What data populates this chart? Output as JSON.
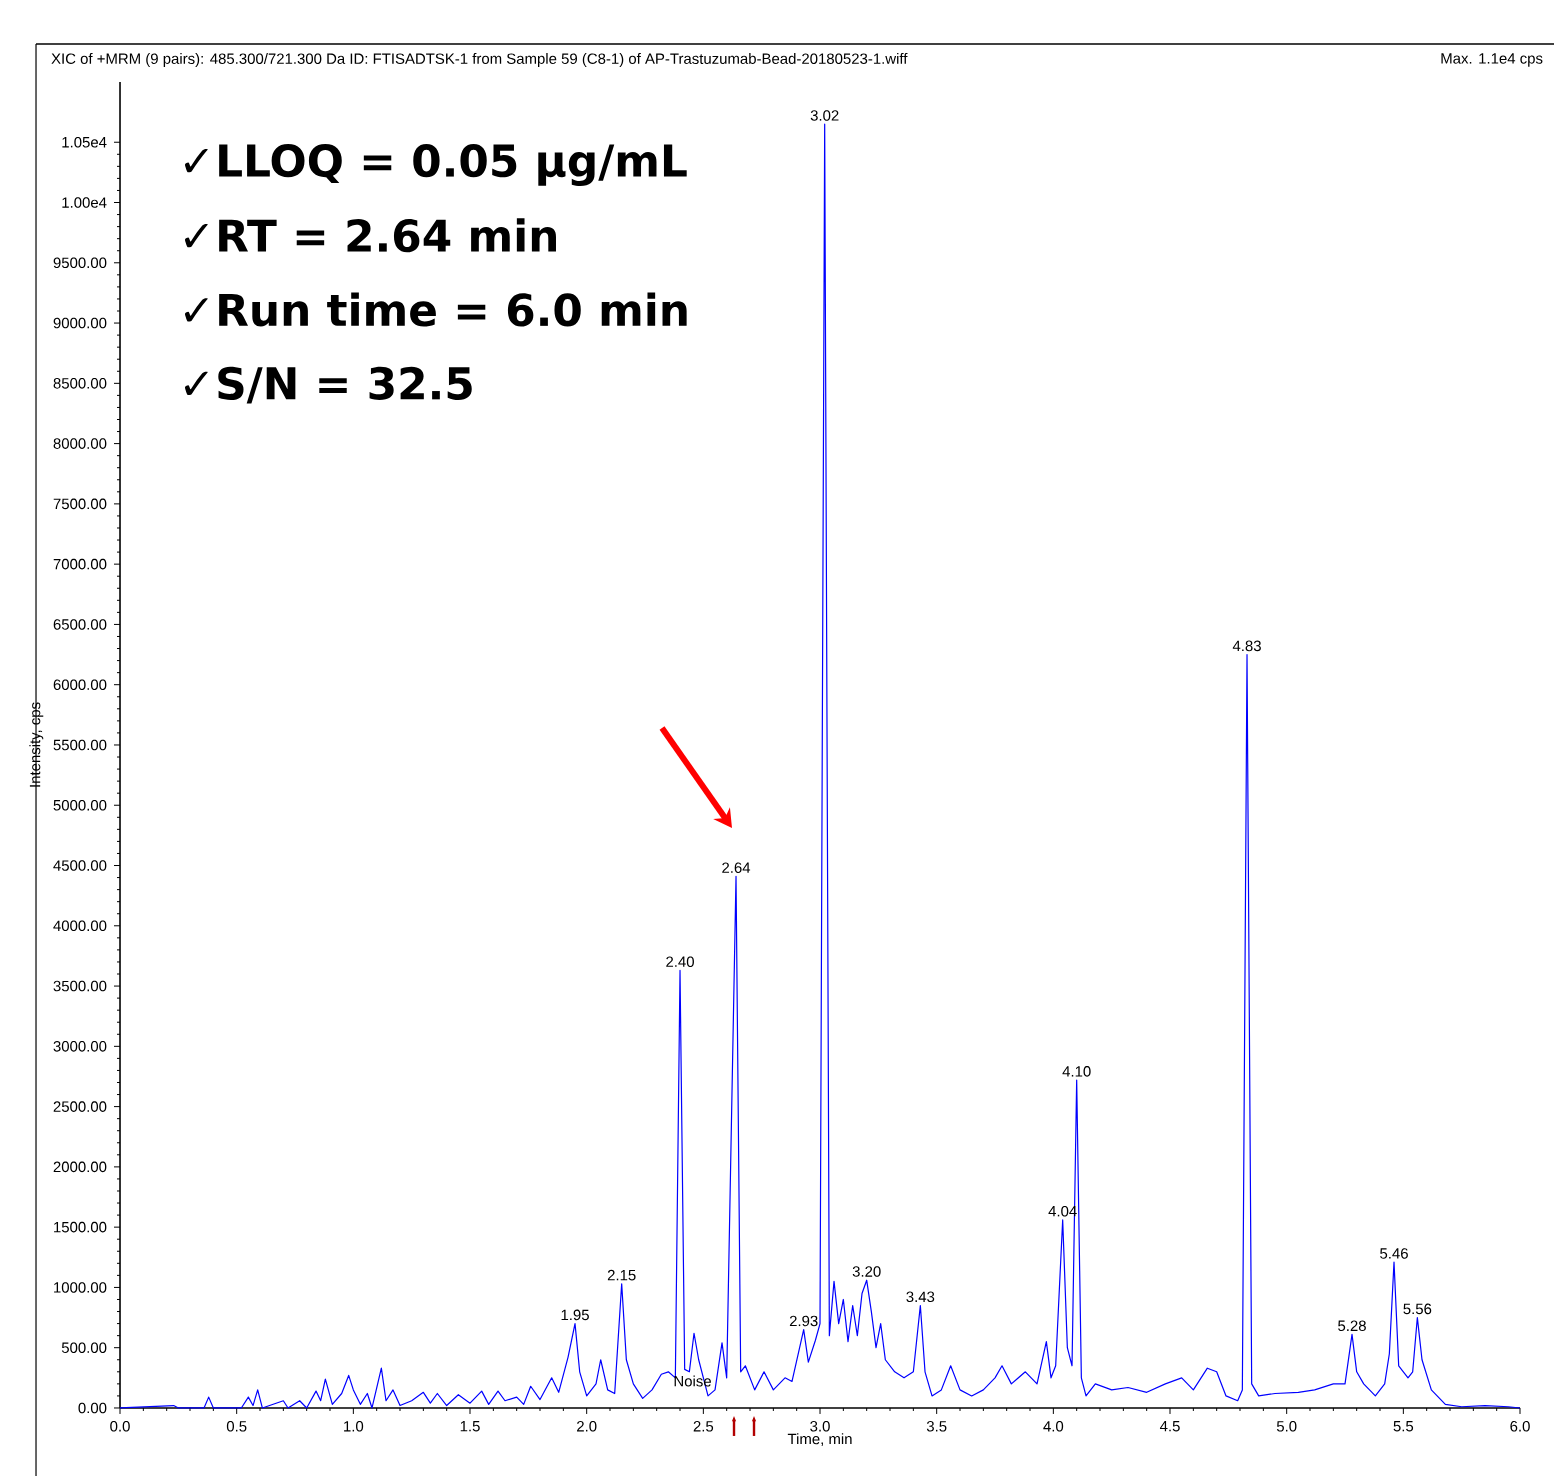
{
  "chart_data": {
    "type": "line",
    "title": "XIC of +MRM (9 pairs): 485.300/721.300 Da ID: FTISADTSK-1 from Sample 59 (C8-1) of AP-Trastuzumab-Bead-20180523-1.wiff",
    "subtitle": "Max. 1.1e4 cps",
    "xlabel": "Time, min",
    "ylabel": "Intensity, cps",
    "xlim": [
      0,
      6
    ],
    "ylim": [
      0,
      11000
    ],
    "xticks": [
      {
        "value": 0,
        "label": "0.0"
      },
      {
        "value": 0.5,
        "label": "0.5"
      },
      {
        "value": 1,
        "label": "1.0"
      },
      {
        "value": 1.5,
        "label": "1.5"
      },
      {
        "value": 2,
        "label": "2.0"
      },
      {
        "value": 2.5,
        "label": "2.5"
      },
      {
        "value": 3,
        "label": "3.0"
      },
      {
        "value": 3.5,
        "label": "3.5"
      },
      {
        "value": 4,
        "label": "4.0"
      },
      {
        "value": 4.5,
        "label": "4.5"
      },
      {
        "value": 5,
        "label": "5.0"
      },
      {
        "value": 5.5,
        "label": "5.5"
      },
      {
        "value": 6,
        "label": "6.0"
      }
    ],
    "yticks": [
      {
        "value": 0,
        "label": "0.00"
      },
      {
        "value": 500,
        "label": "500.00"
      },
      {
        "value": 1000,
        "label": "1000.00"
      },
      {
        "value": 1500,
        "label": "1500.00"
      },
      {
        "value": 2000,
        "label": "2000.00"
      },
      {
        "value": 2500,
        "label": "2500.00"
      },
      {
        "value": 3000,
        "label": "3000.00"
      },
      {
        "value": 3500,
        "label": "3500.00"
      },
      {
        "value": 4000,
        "label": "4000.00"
      },
      {
        "value": 4500,
        "label": "4500.00"
      },
      {
        "value": 5000,
        "label": "5000.00"
      },
      {
        "value": 5500,
        "label": "5500.00"
      },
      {
        "value": 6000,
        "label": "6000.00"
      },
      {
        "value": 6500,
        "label": "6500.00"
      },
      {
        "value": 7000,
        "label": "7000.00"
      },
      {
        "value": 7500,
        "label": "7500.00"
      },
      {
        "value": 8000,
        "label": "8000.00"
      },
      {
        "value": 8500,
        "label": "8500.00"
      },
      {
        "value": 9000,
        "label": "9000.00"
      },
      {
        "value": 9500,
        "label": "9500.00"
      },
      {
        "value": 10000,
        "label": "1.00e4"
      },
      {
        "value": 10500,
        "label": "1.05e4"
      }
    ],
    "grid": false,
    "series": [
      {
        "color": "#0000ff",
        "x": [
          0,
          0.23,
          0.25,
          0.36,
          0.38,
          0.4,
          0.52,
          0.55,
          0.57,
          0.59,
          0.61,
          0.7,
          0.72,
          0.77,
          0.8,
          0.84,
          0.86,
          0.88,
          0.91,
          0.95,
          0.98,
          1.0,
          1.03,
          1.06,
          1.08,
          1.12,
          1.14,
          1.17,
          1.2,
          1.25,
          1.3,
          1.33,
          1.36,
          1.4,
          1.45,
          1.5,
          1.55,
          1.58,
          1.62,
          1.65,
          1.7,
          1.73,
          1.76,
          1.8,
          1.85,
          1.88,
          1.92,
          1.95,
          1.97,
          2.0,
          2.04,
          2.06,
          2.09,
          2.12,
          2.15,
          2.17,
          2.2,
          2.24,
          2.28,
          2.32,
          2.35,
          2.38,
          2.4,
          2.42,
          2.44,
          2.46,
          2.48,
          2.52,
          2.55,
          2.58,
          2.6,
          2.64,
          2.66,
          2.68,
          2.72,
          2.76,
          2.8,
          2.85,
          2.88,
          2.93,
          2.95,
          2.98,
          3.0,
          3.02,
          3.04,
          3.06,
          3.08,
          3.1,
          3.12,
          3.14,
          3.16,
          3.18,
          3.2,
          3.22,
          3.24,
          3.26,
          3.28,
          3.32,
          3.36,
          3.4,
          3.43,
          3.45,
          3.48,
          3.52,
          3.56,
          3.6,
          3.65,
          3.7,
          3.75,
          3.78,
          3.82,
          3.88,
          3.93,
          3.97,
          3.99,
          4.01,
          4.04,
          4.06,
          4.08,
          4.1,
          4.12,
          4.14,
          4.18,
          4.25,
          4.32,
          4.4,
          4.48,
          4.55,
          4.6,
          4.66,
          4.7,
          4.74,
          4.79,
          4.81,
          4.83,
          4.85,
          4.88,
          4.95,
          5.05,
          5.12,
          5.2,
          5.25,
          5.28,
          5.3,
          5.33,
          5.38,
          5.42,
          5.44,
          5.46,
          5.48,
          5.52,
          5.54,
          5.56,
          5.58,
          5.62,
          5.68,
          5.75,
          5.85,
          5.95,
          6.0
        ],
        "values": [
          0,
          20,
          0,
          0,
          90,
          0,
          0,
          90,
          20,
          150,
          0,
          60,
          0,
          60,
          0,
          140,
          60,
          240,
          30,
          120,
          270,
          150,
          30,
          120,
          0,
          330,
          60,
          150,
          20,
          60,
          130,
          40,
          120,
          20,
          110,
          40,
          140,
          30,
          140,
          60,
          90,
          30,
          180,
          70,
          250,
          130,
          420,
          700,
          300,
          100,
          200,
          400,
          150,
          120,
          1030,
          400,
          200,
          80,
          150,
          280,
          300,
          250,
          3630,
          320,
          300,
          620,
          400,
          100,
          150,
          540,
          250,
          4410,
          300,
          350,
          150,
          300,
          150,
          250,
          220,
          650,
          380,
          560,
          700,
          10650,
          600,
          1050,
          700,
          900,
          550,
          850,
          600,
          950,
          1060,
          800,
          500,
          700,
          400,
          300,
          250,
          300,
          850,
          300,
          100,
          150,
          350,
          150,
          100,
          150,
          250,
          350,
          200,
          300,
          200,
          550,
          250,
          350,
          1560,
          500,
          350,
          2720,
          250,
          100,
          200,
          150,
          170,
          130,
          200,
          250,
          150,
          330,
          300,
          100,
          60,
          150,
          6250,
          200,
          100,
          120,
          130,
          150,
          200,
          200,
          610,
          300,
          200,
          100,
          200,
          450,
          1210,
          350,
          250,
          300,
          750,
          400,
          150,
          30,
          10,
          20,
          10,
          0
        ]
      }
    ],
    "annotations": [
      "✓LLOQ = 0.05 µg/mL",
      "✓RT = 2.64 min",
      "✓Run time = 6.0 min",
      "✓S/N = 32.5",
      {
        "text": "1.95",
        "x": 1.95,
        "y": 700
      },
      {
        "text": "2.15",
        "x": 2.15,
        "y": 1030
      },
      {
        "text": "2.40",
        "x": 2.4,
        "y": 3630
      },
      {
        "text": "2.64",
        "x": 2.64,
        "y": 4410
      },
      {
        "text": "2.93",
        "x": 2.93,
        "y": 650
      },
      {
        "text": "3.02",
        "x": 3.02,
        "y": 10650
      },
      {
        "text": "3.20",
        "x": 3.2,
        "y": 1060
      },
      {
        "text": "3.43",
        "x": 3.43,
        "y": 850
      },
      {
        "text": "4.04",
        "x": 4.04,
        "y": 1560
      },
      {
        "text": "4.10",
        "x": 4.1,
        "y": 2720
      },
      {
        "text": "4.83",
        "x": 4.83,
        "y": 6250
      },
      {
        "text": "5.28",
        "x": 5.28,
        "y": 610
      },
      {
        "text": "5.46",
        "x": 5.46,
        "y": 1210
      },
      {
        "text": "5.56",
        "x": 5.56,
        "y": 750
      },
      {
        "text": "Noise",
        "x": 2.55,
        "y": 150
      }
    ]
  }
}
